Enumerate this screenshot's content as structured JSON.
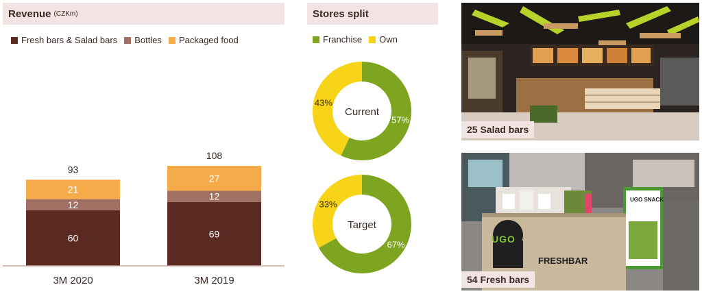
{
  "revenue": {
    "title": "Revenue",
    "unit": "(CZKm)"
  },
  "stores": {
    "title": "Stores split"
  },
  "colors": {
    "fresh": "#5b2a22",
    "bottles": "#a07062",
    "packaged": "#f5ab4a",
    "franchise": "#7ea51f",
    "own": "#f7d418",
    "header_bg": "#f1e4e2"
  },
  "chart_data": [
    {
      "type": "bar",
      "stacked": true,
      "title": "Revenue (CZKm)",
      "categories": [
        "3M 2020",
        "3M 2019"
      ],
      "series": [
        {
          "name": "Fresh bars & Salad bars",
          "values": [
            60,
            69
          ],
          "labels": [
            "60",
            "69"
          ]
        },
        {
          "name": "Bottles",
          "values": [
            12,
            12
          ],
          "labels": [
            "12",
            "12"
          ]
        },
        {
          "name": "Packaged food",
          "values": [
            21,
            27
          ],
          "labels": [
            "21",
            "27"
          ]
        }
      ],
      "totals": [
        93,
        108
      ],
      "total_labels": [
        "93",
        "108"
      ],
      "legend": "top-left",
      "grid": false
    },
    {
      "type": "pie",
      "donut": true,
      "title": "Current",
      "labels": [
        "Franchise",
        "Own"
      ],
      "values": [
        57,
        43
      ],
      "value_labels": [
        "57%",
        "43%"
      ]
    },
    {
      "type": "pie",
      "donut": true,
      "title": "Target",
      "labels": [
        "Franchise",
        "Own"
      ],
      "values": [
        67,
        33
      ],
      "value_labels": [
        "67%",
        "33%"
      ]
    }
  ],
  "photos": {
    "top_caption": "25 Salad bars",
    "bottom_caption": "54 Fresh bars",
    "logo_text": "UGO",
    "sign_text": "FRESHBAR",
    "kiosk_text": "UGO SNACK"
  }
}
